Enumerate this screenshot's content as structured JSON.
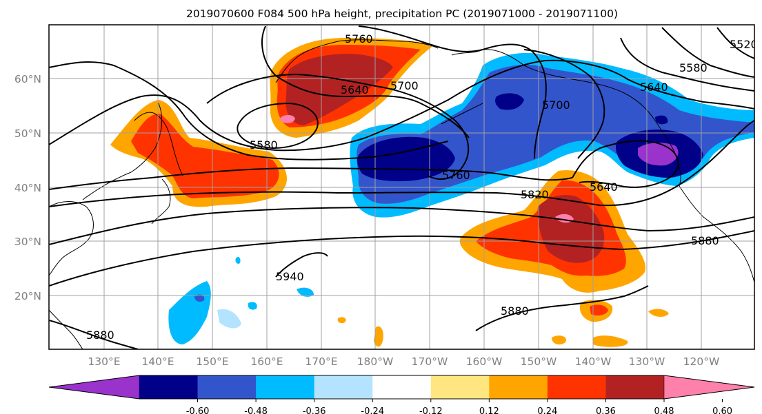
{
  "title": "2019070600 F084 500 hPa height, precipitation PC (2019071000 - 2019071100)",
  "lat_labels": [
    "60°N",
    "50°N",
    "40°N",
    "30°N",
    "20°N"
  ],
  "lon_labels": [
    "130°E",
    "140°E",
    "150°E",
    "160°E",
    "170°E",
    "180°W",
    "170°W",
    "160°W",
    "150°W",
    "140°W",
    "130°W",
    "120°W"
  ],
  "colorbar": {
    "colors": [
      "#9933cc",
      "#000088",
      "#3355cc",
      "#00bbff",
      "#b3e3ff",
      "#ffffff",
      "#ffe680",
      "#ffa500",
      "#ff3300",
      "#b22222",
      "#ff80aa"
    ],
    "tick_labels": [
      "-0.60",
      "-0.48",
      "-0.36",
      "-0.24",
      "-0.12",
      "0.12",
      "0.24",
      "0.36",
      "0.48",
      "0.60"
    ],
    "extend": "both"
  },
  "contour_labels": [
    "5760",
    "5640",
    "5700",
    "5580",
    "5760",
    "5700",
    "5640",
    "5580",
    "5520",
    "5640",
    "5820",
    "5880",
    "5940",
    "5880",
    "5880"
  ]
}
